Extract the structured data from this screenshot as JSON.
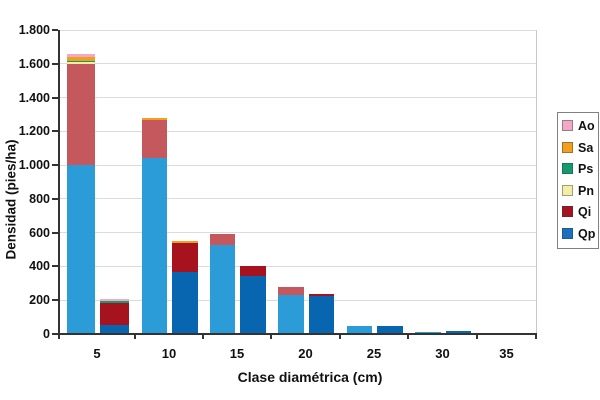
{
  "chart_data": {
    "type": "bar",
    "stacked": true,
    "title": "",
    "xlabel": "Clase diamétrica (cm)",
    "ylabel": "Densidad (pies/ha)",
    "ylim": [
      0,
      1800
    ],
    "ytick_step": 200,
    "yticks": [
      {
        "value": 0,
        "label": "0"
      },
      {
        "value": 200,
        "label": "200"
      },
      {
        "value": 400,
        "label": "400"
      },
      {
        "value": 600,
        "label": "600"
      },
      {
        "value": 800,
        "label": "800"
      },
      {
        "value": 1000,
        "label": "1.000"
      },
      {
        "value": 1200,
        "label": "1.200"
      },
      {
        "value": 1400,
        "label": "1.400"
      },
      {
        "value": 1600,
        "label": "1.600"
      },
      {
        "value": 1800,
        "label": "1.800"
      }
    ],
    "categories": [
      "5",
      "10",
      "15",
      "20",
      "25",
      "30",
      "35"
    ],
    "grid": "horizontal",
    "legend_position": "right",
    "legend": [
      {
        "label": "Ao",
        "color": "#F2A9C6"
      },
      {
        "label": "Sa",
        "color": "#F0A01E"
      },
      {
        "label": "Ps",
        "color": "#129B6E"
      },
      {
        "label": "Pn",
        "color": "#F1EEA6"
      },
      {
        "label": "Qi",
        "color": "#A6121E"
      },
      {
        "label": "Qp",
        "color": "#1B6FBF"
      }
    ],
    "stack_order_bottom_to_top": [
      "Qp",
      "Qi",
      "Pn",
      "Ps",
      "Sa",
      "Ao"
    ],
    "species_colors": {
      "Qp": {
        "light": "#2B9CD8",
        "dark": "#0866B0"
      },
      "Qi": {
        "light": "#C4585C",
        "dark": "#A6121E"
      },
      "Pn": {
        "light": "#F1EEA6",
        "dark": "#F1EEA6"
      },
      "Ps": {
        "light": "#129B6E",
        "dark": "#129B6E"
      },
      "Sa": {
        "light": "#F0A01E",
        "dark": "#F0A01E"
      },
      "Ao": {
        "light": "#F2A9C6",
        "dark": "#F2A9C6"
      }
    },
    "bars": [
      {
        "category": "5",
        "variant": "light",
        "segments": [
          {
            "species": "Qp",
            "value": 1000
          },
          {
            "species": "Qi",
            "value": 600
          },
          {
            "species": "Pn",
            "value": 8
          },
          {
            "species": "Ps",
            "value": 6
          },
          {
            "species": "Sa",
            "value": 24
          },
          {
            "species": "Ao",
            "value": 22
          }
        ]
      },
      {
        "category": "5",
        "variant": "dark",
        "segments": [
          {
            "species": "Qp",
            "value": 55
          },
          {
            "species": "Qi",
            "value": 130
          },
          {
            "species": "Ps",
            "value": 12
          },
          {
            "species": "Ao",
            "value": 12
          }
        ]
      },
      {
        "category": "10",
        "variant": "light",
        "segments": [
          {
            "species": "Qp",
            "value": 1040
          },
          {
            "species": "Qi",
            "value": 225
          },
          {
            "species": "Sa",
            "value": 12
          }
        ]
      },
      {
        "category": "10",
        "variant": "dark",
        "segments": [
          {
            "species": "Qp",
            "value": 370
          },
          {
            "species": "Qi",
            "value": 170
          },
          {
            "species": "Sa",
            "value": 8
          }
        ]
      },
      {
        "category": "15",
        "variant": "light",
        "segments": [
          {
            "species": "Qp",
            "value": 525
          },
          {
            "species": "Qi",
            "value": 65
          }
        ]
      },
      {
        "category": "15",
        "variant": "dark",
        "segments": [
          {
            "species": "Qp",
            "value": 345
          },
          {
            "species": "Qi",
            "value": 60
          }
        ]
      },
      {
        "category": "20",
        "variant": "light",
        "segments": [
          {
            "species": "Qp",
            "value": 230
          },
          {
            "species": "Qi",
            "value": 50
          }
        ]
      },
      {
        "category": "20",
        "variant": "dark",
        "segments": [
          {
            "species": "Qp",
            "value": 225
          },
          {
            "species": "Qi",
            "value": 10
          }
        ]
      },
      {
        "category": "25",
        "variant": "light",
        "segments": [
          {
            "species": "Qp",
            "value": 45
          }
        ]
      },
      {
        "category": "25",
        "variant": "dark",
        "segments": [
          {
            "species": "Qp",
            "value": 50
          }
        ]
      },
      {
        "category": "30",
        "variant": "light",
        "segments": [
          {
            "species": "Qp",
            "value": 12
          }
        ]
      },
      {
        "category": "30",
        "variant": "dark",
        "segments": [
          {
            "species": "Qp",
            "value": 18
          }
        ]
      }
    ]
  }
}
